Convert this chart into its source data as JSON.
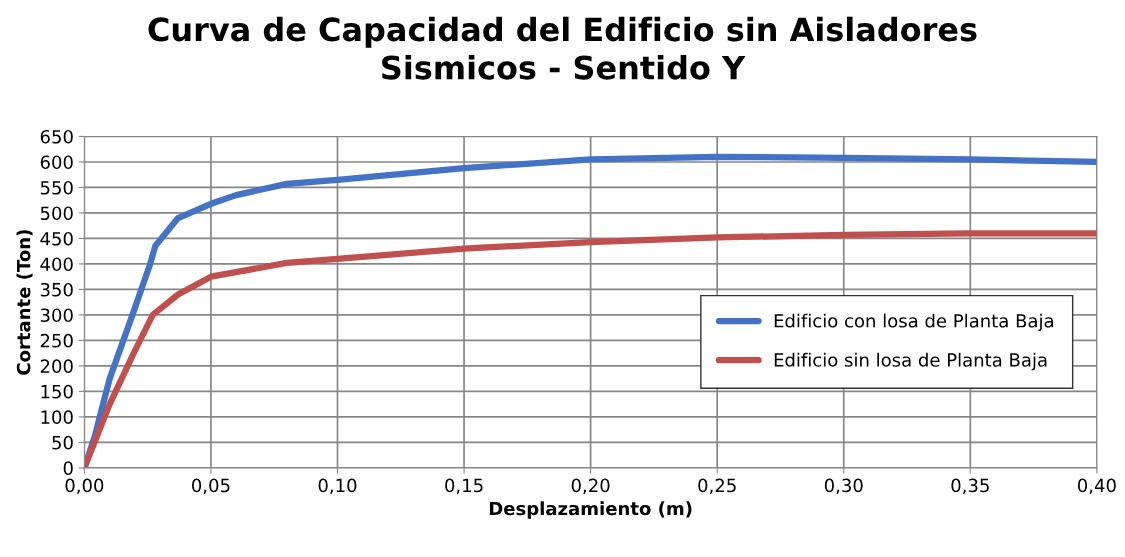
{
  "chart_data": {
    "type": "line",
    "title": "Curva de Capacidad del Edificio sin Aisladores\nSismicos - Sentido Y",
    "xlabel": "Desplazamiento (m)",
    "ylabel": "Cortante (Ton)",
    "series": [
      {
        "name": "Edificio con losa de Planta Baja",
        "color": "#4472c4",
        "x": [
          0,
          0.004,
          0.01,
          0.019,
          0.026,
          0.028,
          0.037,
          0.05,
          0.06,
          0.08,
          0.1,
          0.15,
          0.2,
          0.25,
          0.3,
          0.35,
          0.4
        ],
        "values": [
          0,
          60,
          175,
          300,
          400,
          435,
          490,
          518,
          535,
          557,
          565,
          588,
          605,
          610,
          608,
          605,
          600
        ]
      },
      {
        "name": "Edificio sin losa de Planta Baja",
        "color": "#c0504d",
        "x": [
          0,
          0.01,
          0.019,
          0.027,
          0.037,
          0.05,
          0.08,
          0.1,
          0.15,
          0.2,
          0.25,
          0.3,
          0.35,
          0.4
        ],
        "values": [
          0,
          125,
          220,
          300,
          340,
          375,
          402,
          410,
          430,
          443,
          452,
          457,
          460,
          460
        ]
      }
    ],
    "xlim": [
      0,
      0.4
    ],
    "ylim": [
      0,
      650
    ],
    "xticks": [
      {
        "value": 0,
        "label": "0,00"
      },
      {
        "value": 0.05,
        "label": "0,05"
      },
      {
        "value": 0.1,
        "label": "0,10"
      },
      {
        "value": 0.15,
        "label": "0,15"
      },
      {
        "value": 0.2,
        "label": "0,20"
      },
      {
        "value": 0.25,
        "label": "0,25"
      },
      {
        "value": 0.3,
        "label": "0,30"
      },
      {
        "value": 0.35,
        "label": "0,35"
      },
      {
        "value": 0.4,
        "label": "0,40"
      }
    ],
    "yticks": [
      0,
      50,
      100,
      150,
      200,
      250,
      300,
      350,
      400,
      450,
      500,
      550,
      600,
      650
    ],
    "grid": true,
    "legend": "right",
    "marker": "none",
    "line_style": "solid"
  }
}
